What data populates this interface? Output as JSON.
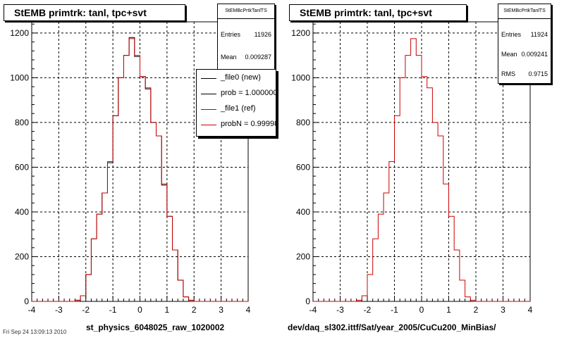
{
  "footer_text": "Fri Sep 24 13:09:13 2010",
  "chart_data": [
    {
      "type": "histogram",
      "title": "StEMB primtrk: tanl, tpc+svt",
      "xlabel": "st_physics_6048025_raw_1020002",
      "ylabel": "",
      "xlim": [
        -4,
        4
      ],
      "ylim": [
        0,
        1250
      ],
      "xticks": [
        -4,
        -3,
        -2,
        -1,
        0,
        1,
        2,
        3,
        4
      ],
      "yticks": [
        0,
        200,
        400,
        600,
        800,
        1000,
        1200
      ],
      "grid": true,
      "bin_edges": [
        -4.0,
        -3.8,
        -3.6,
        -3.4,
        -3.2,
        -3.0,
        -2.8,
        -2.6,
        -2.4,
        -2.2,
        -2.0,
        -1.8,
        -1.6,
        -1.4,
        -1.2,
        -1.0,
        -0.8,
        -0.6,
        -0.4,
        -0.2,
        0.0,
        0.2,
        0.4,
        0.6,
        0.8,
        1.0,
        1.2,
        1.4,
        1.6,
        1.8,
        2.0,
        2.2,
        2.4,
        2.6,
        2.8,
        3.0,
        3.2,
        3.4,
        3.6,
        3.8,
        4.0
      ],
      "series": [
        {
          "name": "_file0 (new)",
          "color": "#000000",
          "values": [
            0,
            0,
            0,
            0,
            0,
            0,
            0,
            0,
            5,
            25,
            120,
            280,
            390,
            485,
            620,
            830,
            1000,
            1100,
            1180,
            1095,
            1005,
            950,
            800,
            740,
            520,
            380,
            230,
            95,
            20,
            5,
            0,
            0,
            0,
            0,
            0,
            0,
            0,
            0,
            0,
            0
          ]
        },
        {
          "name": "_file1 (ref)",
          "color": "#cc0000",
          "values": [
            0,
            0,
            0,
            0,
            0,
            0,
            0,
            0,
            5,
            25,
            120,
            280,
            390,
            485,
            625,
            830,
            1000,
            1100,
            1175,
            1100,
            1005,
            955,
            800,
            740,
            525,
            380,
            230,
            95,
            20,
            5,
            0,
            0,
            0,
            0,
            0,
            0,
            0,
            0,
            0,
            0
          ]
        }
      ],
      "stats": {
        "name": "StEMBcPrtkTanlTS",
        "entries": "11926",
        "mean": "0.009287"
      },
      "legend": [
        {
          "label": "_file0 (new)",
          "color": "#000000"
        },
        {
          "label": "prob = 1.000000",
          "color": "#000000"
        },
        {
          "label": "_file1 (ref)",
          "color": "#cc0000"
        },
        {
          "label": "probN = 0.999983",
          "color": "#cc0000"
        }
      ]
    },
    {
      "type": "histogram",
      "title": "StEMB primtrk: tanl, tpc+svt",
      "xlabel": "dev/daq_sl302.ittf/Sat/year_2005/CuCu200_MinBias/",
      "ylabel": "",
      "xlim": [
        -4,
        4
      ],
      "ylim": [
        0,
        1250
      ],
      "xticks": [
        -4,
        -3,
        -2,
        -1,
        0,
        1,
        2,
        3,
        4
      ],
      "yticks": [
        0,
        200,
        400,
        600,
        800,
        1000,
        1200
      ],
      "grid": true,
      "bin_edges": [
        -4.0,
        -3.8,
        -3.6,
        -3.4,
        -3.2,
        -3.0,
        -2.8,
        -2.6,
        -2.4,
        -2.2,
        -2.0,
        -1.8,
        -1.6,
        -1.4,
        -1.2,
        -1.0,
        -0.8,
        -0.6,
        -0.4,
        -0.2,
        0.0,
        0.2,
        0.4,
        0.6,
        0.8,
        1.0,
        1.2,
        1.4,
        1.6,
        1.8,
        2.0,
        2.2,
        2.4,
        2.6,
        2.8,
        3.0,
        3.2,
        3.4,
        3.6,
        3.8,
        4.0
      ],
      "series": [
        {
          "name": "",
          "color": "#cc0000",
          "values": [
            0,
            0,
            0,
            0,
            0,
            0,
            0,
            0,
            5,
            25,
            120,
            280,
            390,
            485,
            625,
            830,
            1000,
            1100,
            1175,
            1100,
            1005,
            955,
            800,
            740,
            525,
            380,
            230,
            95,
            20,
            5,
            0,
            0,
            0,
            0,
            0,
            0,
            0,
            0,
            0,
            0
          ]
        }
      ],
      "stats": {
        "name": "StEMBcPrtkTanlTS",
        "entries": "11924",
        "mean": "0.009241",
        "rms": "0.9715"
      }
    }
  ]
}
